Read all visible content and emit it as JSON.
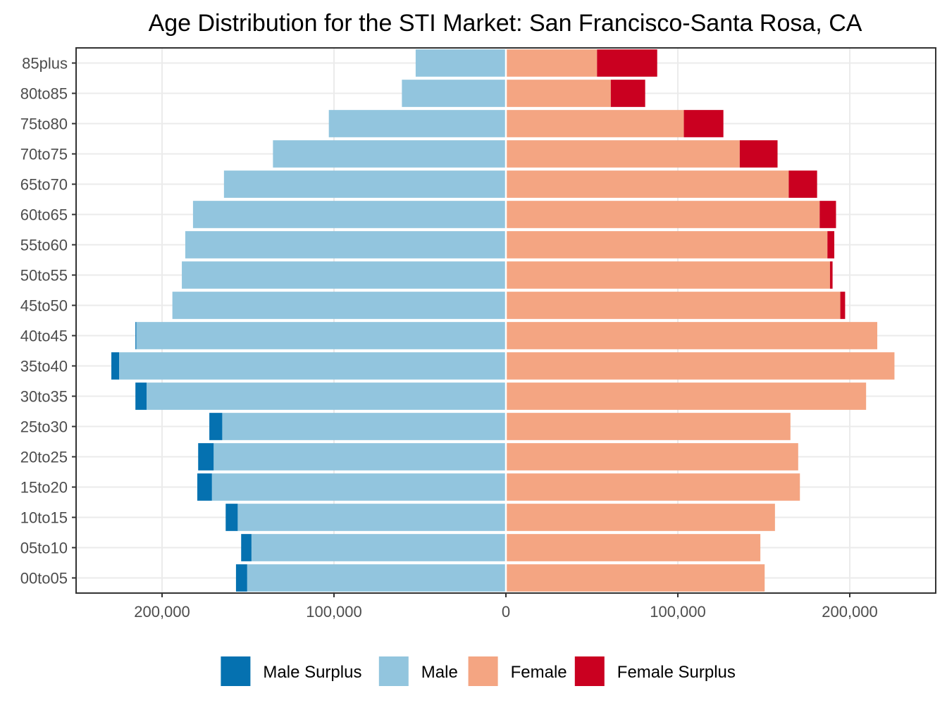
{
  "chart_data": {
    "type": "bar",
    "orientation": "horizontal",
    "layout": "population-pyramid",
    "title": "Age Distribution for the STI Market: San Francisco-Santa Rosa, CA",
    "xlabel": "",
    "ylabel": "",
    "xlim": [
      -250000,
      250000
    ],
    "x_ticks": [
      -200000,
      -100000,
      0,
      100000,
      200000
    ],
    "x_tick_labels": [
      "200,000",
      "100,000",
      "0",
      "100,000",
      "200,000"
    ],
    "grid": true,
    "legend_position": "bottom",
    "categories": [
      "85plus",
      "80to85",
      "75to80",
      "70to75",
      "65to70",
      "60to65",
      "55to60",
      "50to55",
      "45to50",
      "40to45",
      "35to40",
      "30to35",
      "25to30",
      "20to25",
      "15to20",
      "10to15",
      "05to10",
      "00to05"
    ],
    "series": [
      {
        "name": "Male",
        "side": "left",
        "color": "#92c5de",
        "values": [
          52500,
          60500,
          103000,
          135500,
          164000,
          182000,
          186500,
          188500,
          194000,
          215000,
          225000,
          209000,
          165000,
          170000,
          171000,
          156000,
          148000,
          150500
        ]
      },
      {
        "name": "Male Surplus",
        "side": "left",
        "color": "#0571b0",
        "values": [
          0,
          0,
          0,
          0,
          0,
          0,
          0,
          0,
          0,
          500,
          4500,
          6500,
          7500,
          9000,
          8500,
          7000,
          6000,
          6500
        ]
      },
      {
        "name": "Female",
        "side": "right",
        "color": "#f4a582",
        "values": [
          53000,
          61000,
          103500,
          136000,
          164500,
          182500,
          187000,
          188500,
          194500,
          216000,
          226000,
          209500,
          165500,
          170000,
          171000,
          156500,
          148000,
          150500
        ]
      },
      {
        "name": "Female Surplus",
        "side": "right",
        "color": "#ca0020",
        "values": [
          35000,
          20000,
          23000,
          22000,
          16500,
          9500,
          4000,
          1500,
          2800,
          0,
          0,
          0,
          0,
          0,
          0,
          0,
          0,
          0
        ]
      }
    ],
    "legend": [
      "Male Surplus",
      "Male",
      "Female",
      "Female Surplus"
    ]
  },
  "colors": {
    "panel_border": "#333333",
    "grid_major": "#ebebeb",
    "axis_text": "#4d4d4d"
  }
}
